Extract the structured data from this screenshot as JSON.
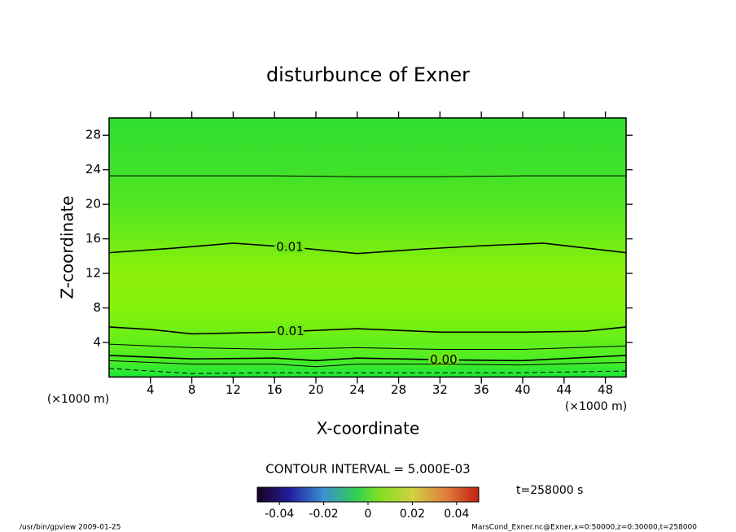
{
  "chart_data": {
    "type": "contour",
    "title": "disturbunce of Exner",
    "x_label": "X-coordinate",
    "y_label": "Z-coordinate",
    "x_unit": "(×1000 m)",
    "y_unit": "(×1000 m)",
    "xlim": [
      0,
      50
    ],
    "xticks": [
      4,
      8,
      12,
      16,
      20,
      24,
      28,
      32,
      36,
      40,
      44,
      48
    ],
    "ylim": [
      0,
      30
    ],
    "yticks": [
      4,
      8,
      12,
      16,
      20,
      24,
      28
    ],
    "contour_interval": "CONTOUR INTERVAL = 5.000E-03",
    "time_label": "t=258000 s",
    "footer_left": "/usr/bin/gpview   2009-01-25",
    "footer_right": "MarsCond_Exner.nc@Exner,x=0:50000,z=0:30000,t=258000",
    "colorbar": {
      "clim": [
        -0.05,
        0.05
      ],
      "ticks": [
        -0.04,
        -0.02,
        0,
        0.02,
        0.04
      ]
    },
    "series": [
      {
        "style": "solid",
        "width": 1,
        "color": "#000000",
        "x": [
          0,
          8,
          16,
          24,
          32,
          40,
          50
        ],
        "values": [
          23.3,
          23.3,
          23.3,
          23.2,
          23.2,
          23.3,
          23.3
        ]
      },
      {
        "style": "solid",
        "width": 1.6,
        "color": "#000000",
        "label": "0.01",
        "x": [
          0,
          6,
          12,
          18,
          24,
          30,
          36,
          42,
          50
        ],
        "values": [
          14.4,
          14.9,
          15.5,
          15.0,
          14.3,
          14.8,
          15.2,
          15.5,
          14.4
        ]
      },
      {
        "style": "solid",
        "width": 1.6,
        "color": "#000000",
        "label": "0.01",
        "x": [
          0,
          4,
          8,
          16,
          24,
          32,
          40,
          46,
          50
        ],
        "values": [
          5.8,
          5.5,
          5.0,
          5.2,
          5.6,
          5.2,
          5.2,
          5.3,
          5.8
        ]
      },
      {
        "style": "solid",
        "width": 1,
        "color": "#000000",
        "x": [
          0,
          8,
          16,
          24,
          32,
          40,
          50
        ],
        "values": [
          3.8,
          3.4,
          3.2,
          3.4,
          3.2,
          3.2,
          3.6
        ]
      },
      {
        "style": "solid",
        "width": 1.6,
        "color": "#000000",
        "label": "0.00",
        "x": [
          0,
          8,
          16,
          20,
          24,
          32,
          40,
          50
        ],
        "values": [
          2.5,
          2.1,
          2.2,
          1.9,
          2.2,
          2.0,
          1.9,
          2.5
        ]
      },
      {
        "style": "solid",
        "width": 1,
        "color": "#000000",
        "x": [
          0,
          8,
          16,
          20,
          24,
          32,
          40,
          50
        ],
        "values": [
          1.9,
          1.5,
          1.5,
          1.2,
          1.5,
          1.5,
          1.4,
          1.7
        ]
      },
      {
        "style": "dashed",
        "width": 1,
        "color": "#000000",
        "x": [
          0,
          8,
          16,
          24,
          32,
          40,
          50
        ],
        "values": [
          1.0,
          0.4,
          0.5,
          0.5,
          0.5,
          0.5,
          0.7
        ]
      }
    ]
  }
}
